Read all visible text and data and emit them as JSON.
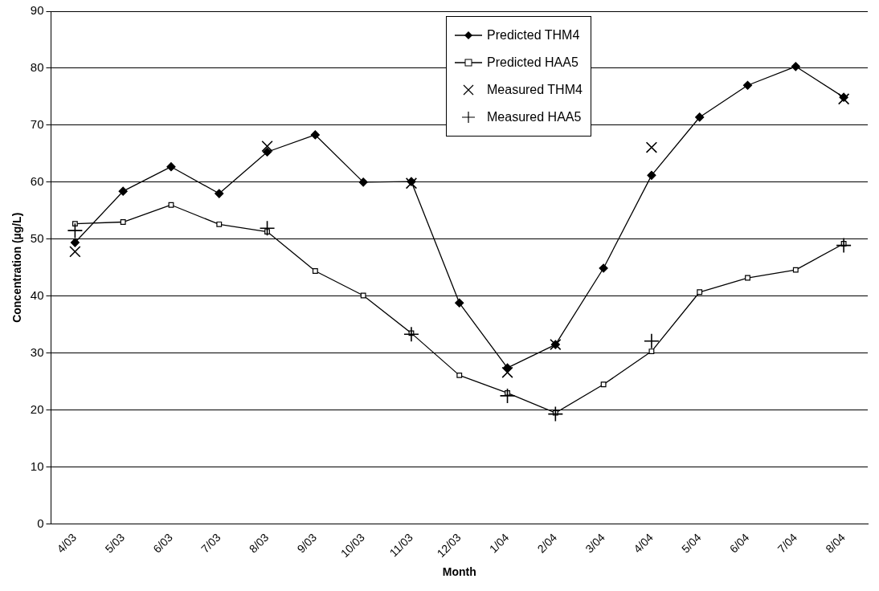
{
  "chart_data": {
    "type": "line",
    "xlabel": "Month",
    "ylabel": "Concentration (µg/L)",
    "categories": [
      "4/03",
      "5/03",
      "6/03",
      "7/03",
      "8/03",
      "9/03",
      "10/03",
      "11/03",
      "12/03",
      "1/04",
      "2/04",
      "3/04",
      "4/04",
      "5/04",
      "6/04",
      "7/04",
      "8/04"
    ],
    "series": [
      {
        "name": "Predicted THM4",
        "type": "line",
        "marker": "diamond",
        "color": "#000000",
        "values": [
          49.4,
          58.4,
          62.7,
          58.0,
          65.3,
          68.3,
          60.0,
          60.1,
          38.8,
          27.4,
          31.5,
          44.9,
          61.2,
          71.4,
          77.0,
          80.3,
          74.9
        ]
      },
      {
        "name": "Predicted HAA5",
        "type": "line",
        "marker": "square",
        "color": "#000000",
        "values": [
          52.7,
          53.0,
          56.0,
          52.6,
          51.3,
          44.4,
          40.1,
          33.5,
          26.1,
          23.0,
          19.5,
          24.5,
          30.3,
          40.7,
          43.2,
          44.6,
          49.2
        ]
      },
      {
        "name": "Measured THM4",
        "type": "scatter",
        "marker": "cross",
        "color": "#000000",
        "values": [
          47.8,
          null,
          null,
          null,
          66.3,
          null,
          null,
          59.8,
          null,
          26.6,
          31.5,
          null,
          66.1,
          null,
          null,
          null,
          74.6
        ]
      },
      {
        "name": "Measured HAA5",
        "type": "scatter",
        "marker": "plus",
        "color": "#000000",
        "values": [
          51.5,
          null,
          null,
          null,
          51.9,
          null,
          null,
          33.3,
          null,
          22.5,
          19.3,
          null,
          32.1,
          null,
          null,
          null,
          48.9
        ]
      }
    ],
    "ylim": [
      0,
      90
    ],
    "yticks": [
      0,
      10,
      20,
      30,
      40,
      50,
      60,
      70,
      80,
      90
    ],
    "grid": "y",
    "legend": "top right"
  }
}
